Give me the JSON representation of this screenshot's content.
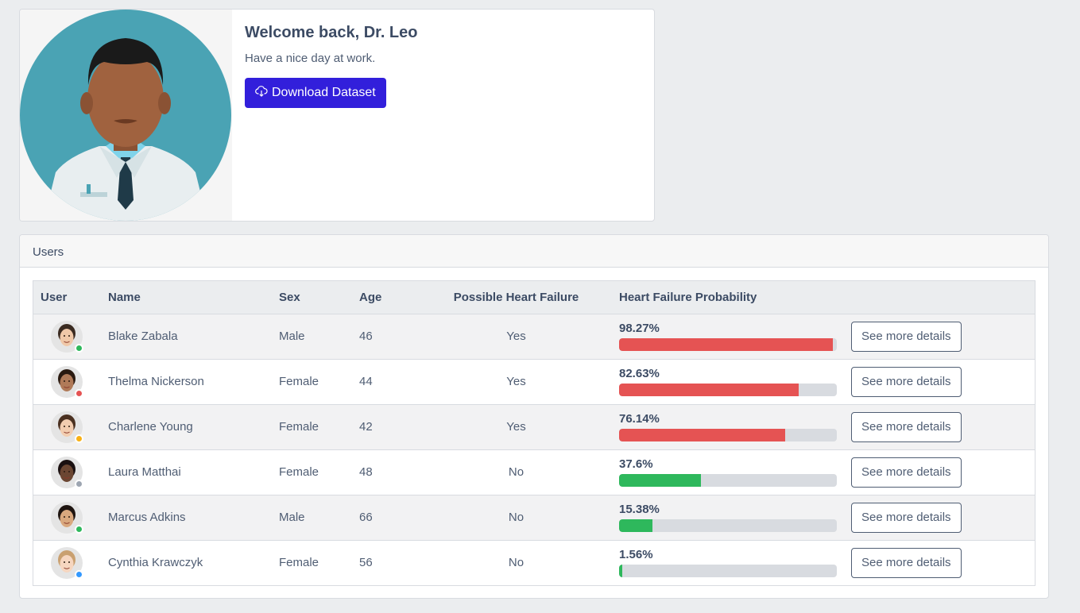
{
  "welcome": {
    "title": "Welcome back, Dr. Leo",
    "subtitle": "Have a nice day at work.",
    "download_label": "Download Dataset",
    "download_icon": "cloud-download-icon",
    "accent_color": "#321fdb"
  },
  "users_card": {
    "title": "Users",
    "columns": [
      "User",
      "Name",
      "Sex",
      "Age",
      "Possible Heart Failure",
      "Heart Failure Probability"
    ],
    "details_label": "See more details",
    "rows": [
      {
        "name": "Blake Zabala",
        "sex": "Male",
        "age": "46",
        "possible": "Yes",
        "probability": "98.27%",
        "prob_value": 98.27,
        "bar_color": "#e55353",
        "status_color": "#2eb85c",
        "skin": "#f0c8a8",
        "hair": "#3a2a20"
      },
      {
        "name": "Thelma Nickerson",
        "sex": "Female",
        "age": "44",
        "possible": "Yes",
        "probability": "82.63%",
        "prob_value": 82.63,
        "bar_color": "#e55353",
        "status_color": "#e55353",
        "skin": "#b07a58",
        "hair": "#2a1a10"
      },
      {
        "name": "Charlene Young",
        "sex": "Female",
        "age": "42",
        "possible": "Yes",
        "probability": "76.14%",
        "prob_value": 76.14,
        "bar_color": "#e55353",
        "status_color": "#f9b115",
        "skin": "#f2cdb0",
        "hair": "#4a3020"
      },
      {
        "name": "Laura Matthai",
        "sex": "Female",
        "age": "48",
        "possible": "No",
        "probability": "37.6%",
        "prob_value": 37.6,
        "bar_color": "#2eb85c",
        "status_color": "#9da5b1",
        "skin": "#6b4632",
        "hair": "#1a1010"
      },
      {
        "name": "Marcus Adkins",
        "sex": "Male",
        "age": "66",
        "possible": "No",
        "probability": "15.38%",
        "prob_value": 15.38,
        "bar_color": "#2eb85c",
        "status_color": "#2eb85c",
        "skin": "#d9a87e",
        "hair": "#1e1410"
      },
      {
        "name": "Cynthia Krawczyk",
        "sex": "Female",
        "age": "56",
        "possible": "No",
        "probability": "1.56%",
        "prob_value": 1.56,
        "bar_color": "#2eb85c",
        "status_color": "#39f",
        "skin": "#f6d6c0",
        "hair": "#c9a070"
      }
    ]
  }
}
